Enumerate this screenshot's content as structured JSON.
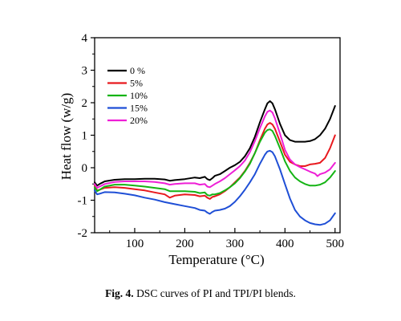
{
  "caption": {
    "label": "Fig. 4.",
    "text": "DSC curves of PI and TPI/PI blends."
  },
  "chart_data": {
    "type": "line",
    "title": "",
    "xlabel": "Temperature (°C)",
    "ylabel": "Heat flow (w/g)",
    "xlim": [
      20,
      510
    ],
    "ylim": [
      -2,
      4
    ],
    "xticks": [
      "100",
      "200",
      "300",
      "400",
      "500"
    ],
    "yticks": [
      "-2",
      "-1",
      "0",
      "1",
      "2",
      "3",
      "4"
    ],
    "grid": false,
    "legend_position": "top-left",
    "series": [
      {
        "name": "0 %",
        "color": "#000000",
        "x": [
          20,
          25,
          30,
          40,
          60,
          80,
          100,
          120,
          140,
          160,
          170,
          180,
          200,
          220,
          230,
          240,
          245,
          250,
          255,
          260,
          270,
          280,
          290,
          300,
          310,
          320,
          330,
          340,
          350,
          360,
          365,
          370,
          375,
          380,
          390,
          400,
          410,
          420,
          430,
          440,
          450,
          460,
          470,
          480,
          490,
          500
        ],
        "y": [
          -0.45,
          -0.55,
          -0.5,
          -0.42,
          -0.37,
          -0.35,
          -0.35,
          -0.34,
          -0.34,
          -0.36,
          -0.4,
          -0.38,
          -0.35,
          -0.3,
          -0.32,
          -0.28,
          -0.35,
          -0.38,
          -0.32,
          -0.25,
          -0.2,
          -0.1,
          0.0,
          0.08,
          0.18,
          0.35,
          0.6,
          0.95,
          1.4,
          1.8,
          1.98,
          2.05,
          1.98,
          1.8,
          1.35,
          1.0,
          0.85,
          0.8,
          0.8,
          0.8,
          0.82,
          0.88,
          1.0,
          1.2,
          1.5,
          1.9
        ]
      },
      {
        "name": "5%",
        "color": "#e8191e",
        "x": [
          20,
          25,
          30,
          40,
          60,
          80,
          100,
          120,
          140,
          160,
          170,
          180,
          200,
          220,
          230,
          240,
          245,
          250,
          255,
          260,
          270,
          280,
          290,
          300,
          310,
          320,
          330,
          340,
          350,
          360,
          365,
          370,
          375,
          380,
          390,
          400,
          410,
          420,
          430,
          440,
          450,
          460,
          470,
          480,
          490,
          500
        ],
        "y": [
          -0.55,
          -0.7,
          -0.68,
          -0.62,
          -0.6,
          -0.62,
          -0.66,
          -0.7,
          -0.76,
          -0.82,
          -0.92,
          -0.86,
          -0.82,
          -0.84,
          -0.88,
          -0.86,
          -0.92,
          -0.96,
          -0.9,
          -0.88,
          -0.82,
          -0.72,
          -0.6,
          -0.45,
          -0.3,
          -0.1,
          0.15,
          0.45,
          0.85,
          1.2,
          1.33,
          1.38,
          1.33,
          1.2,
          0.8,
          0.4,
          0.18,
          0.1,
          0.05,
          0.05,
          0.1,
          0.12,
          0.15,
          0.3,
          0.6,
          1.0
        ]
      },
      {
        "name": "10%",
        "color": "#14b414",
        "x": [
          20,
          25,
          30,
          40,
          60,
          80,
          100,
          120,
          140,
          160,
          170,
          180,
          200,
          220,
          230,
          240,
          245,
          250,
          255,
          260,
          270,
          280,
          290,
          300,
          310,
          320,
          330,
          340,
          350,
          360,
          365,
          370,
          375,
          380,
          390,
          400,
          410,
          420,
          430,
          440,
          450,
          460,
          470,
          480,
          490,
          500
        ],
        "y": [
          -0.6,
          -0.72,
          -0.68,
          -0.58,
          -0.52,
          -0.52,
          -0.55,
          -0.58,
          -0.62,
          -0.66,
          -0.72,
          -0.72,
          -0.72,
          -0.74,
          -0.78,
          -0.76,
          -0.84,
          -0.86,
          -0.82,
          -0.82,
          -0.78,
          -0.7,
          -0.6,
          -0.48,
          -0.32,
          -0.12,
          0.12,
          0.45,
          0.8,
          1.08,
          1.16,
          1.18,
          1.13,
          0.98,
          0.6,
          0.2,
          -0.1,
          -0.3,
          -0.42,
          -0.5,
          -0.55,
          -0.55,
          -0.52,
          -0.45,
          -0.3,
          -0.1
        ]
      },
      {
        "name": "15%",
        "color": "#1f4fd6",
        "x": [
          20,
          25,
          30,
          40,
          60,
          80,
          100,
          120,
          140,
          160,
          180,
          200,
          220,
          230,
          240,
          245,
          250,
          255,
          260,
          270,
          280,
          290,
          300,
          310,
          320,
          330,
          340,
          350,
          360,
          365,
          370,
          375,
          380,
          390,
          400,
          410,
          420,
          430,
          440,
          450,
          460,
          470,
          480,
          490,
          500
        ],
        "y": [
          -0.7,
          -0.82,
          -0.8,
          -0.75,
          -0.76,
          -0.8,
          -0.85,
          -0.92,
          -0.98,
          -1.06,
          -1.12,
          -1.18,
          -1.24,
          -1.3,
          -1.32,
          -1.38,
          -1.42,
          -1.36,
          -1.32,
          -1.3,
          -1.26,
          -1.18,
          -1.05,
          -0.88,
          -0.68,
          -0.45,
          -0.2,
          0.12,
          0.4,
          0.5,
          0.52,
          0.48,
          0.35,
          -0.05,
          -0.5,
          -0.95,
          -1.3,
          -1.5,
          -1.62,
          -1.7,
          -1.74,
          -1.76,
          -1.72,
          -1.62,
          -1.4
        ]
      },
      {
        "name": "20%",
        "color": "#ee1fd6",
        "x": [
          20,
          25,
          30,
          40,
          60,
          80,
          100,
          120,
          140,
          160,
          170,
          180,
          200,
          220,
          230,
          240,
          245,
          250,
          255,
          260,
          270,
          280,
          290,
          300,
          310,
          320,
          330,
          340,
          350,
          360,
          365,
          370,
          375,
          380,
          390,
          400,
          410,
          420,
          430,
          440,
          450,
          460,
          465,
          470,
          480,
          490,
          500
        ],
        "y": [
          -0.5,
          -0.62,
          -0.58,
          -0.5,
          -0.44,
          -0.42,
          -0.42,
          -0.42,
          -0.44,
          -0.48,
          -0.52,
          -0.5,
          -0.48,
          -0.48,
          -0.52,
          -0.5,
          -0.58,
          -0.6,
          -0.55,
          -0.5,
          -0.42,
          -0.32,
          -0.2,
          -0.08,
          0.05,
          0.22,
          0.48,
          0.82,
          1.22,
          1.58,
          1.72,
          1.76,
          1.7,
          1.52,
          1.05,
          0.55,
          0.25,
          0.1,
          0.02,
          -0.05,
          -0.12,
          -0.18,
          -0.26,
          -0.2,
          -0.15,
          -0.05,
          0.15
        ]
      }
    ]
  }
}
